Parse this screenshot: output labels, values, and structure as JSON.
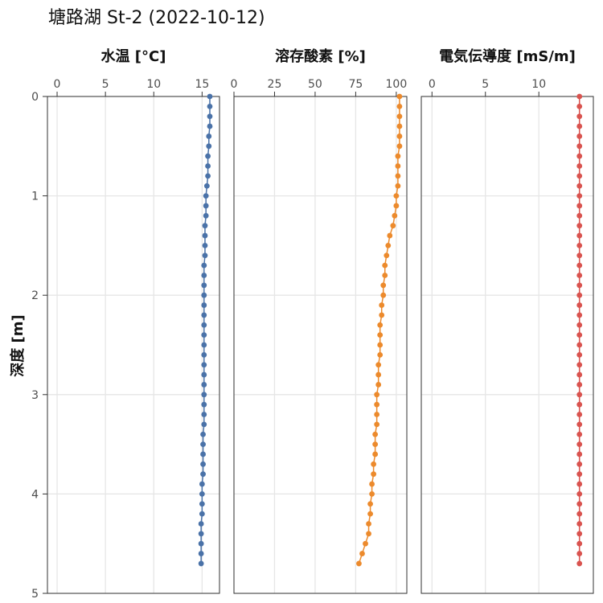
{
  "title": "塘路湖 St-2 (2022-10-12)",
  "chart_data": {
    "type": "scatter",
    "title": "塘路湖 St-2 (2022-10-12)",
    "ylabel": "深度 [m]",
    "ylim": [
      0,
      5
    ],
    "yticks": [
      0,
      1,
      2,
      3,
      4,
      5
    ],
    "y_reversed": true,
    "grid": true,
    "depth": [
      0.0,
      0.1,
      0.2,
      0.3,
      0.4,
      0.5,
      0.6,
      0.7,
      0.8,
      0.9,
      1.0,
      1.1,
      1.2,
      1.3,
      1.4,
      1.5,
      1.6,
      1.7,
      1.8,
      1.9,
      2.0,
      2.1,
      2.2,
      2.3,
      2.4,
      2.5,
      2.6,
      2.7,
      2.8,
      2.9,
      3.0,
      3.1,
      3.2,
      3.3,
      3.4,
      3.5,
      3.6,
      3.7,
      3.8,
      3.9,
      4.0,
      4.1,
      4.2,
      4.3,
      4.4,
      4.5,
      4.6,
      4.7
    ],
    "panels": [
      {
        "label": "水温 [°C]",
        "xlim": [
          -1,
          16.8
        ],
        "xticks": [
          0,
          5,
          10,
          15
        ],
        "color": "#4a72a8",
        "values": [
          15.8,
          15.8,
          15.8,
          15.8,
          15.7,
          15.7,
          15.6,
          15.6,
          15.6,
          15.5,
          15.4,
          15.4,
          15.4,
          15.3,
          15.3,
          15.3,
          15.3,
          15.2,
          15.2,
          15.2,
          15.2,
          15.2,
          15.2,
          15.2,
          15.2,
          15.2,
          15.2,
          15.2,
          15.2,
          15.2,
          15.2,
          15.2,
          15.2,
          15.2,
          15.1,
          15.1,
          15.1,
          15.1,
          15.1,
          15.0,
          15.0,
          15.0,
          15.0,
          14.9,
          14.9,
          14.9,
          14.9,
          14.9
        ]
      },
      {
        "label": "溶存酸素 [%]",
        "xlim": [
          0,
          106.5
        ],
        "xticks": [
          0,
          25,
          50,
          75,
          100
        ],
        "color": "#ec8a2c",
        "values": [
          102,
          102,
          102,
          102,
          102,
          102,
          101,
          101,
          101,
          101,
          100,
          100,
          99,
          98,
          96,
          95,
          94,
          93,
          93,
          92,
          92,
          91,
          91,
          90,
          90,
          90,
          90,
          89,
          89,
          89,
          88,
          88,
          88,
          88,
          87,
          87,
          87,
          86,
          86,
          85,
          85,
          84,
          84,
          83,
          83,
          81,
          79,
          77
        ]
      },
      {
        "label": "電気伝導度 [mS/m]",
        "xlim": [
          -1,
          15.1
        ],
        "xticks": [
          0,
          5,
          10
        ],
        "color": "#d9534f",
        "values": [
          13.8,
          13.8,
          13.8,
          13.8,
          13.8,
          13.8,
          13.8,
          13.8,
          13.8,
          13.8,
          13.8,
          13.8,
          13.8,
          13.8,
          13.8,
          13.8,
          13.8,
          13.8,
          13.8,
          13.8,
          13.8,
          13.8,
          13.8,
          13.8,
          13.8,
          13.8,
          13.8,
          13.8,
          13.8,
          13.8,
          13.8,
          13.8,
          13.8,
          13.8,
          13.8,
          13.8,
          13.8,
          13.8,
          13.8,
          13.8,
          13.8,
          13.8,
          13.8,
          13.8,
          13.8,
          13.8,
          13.8,
          13.8
        ]
      }
    ]
  }
}
